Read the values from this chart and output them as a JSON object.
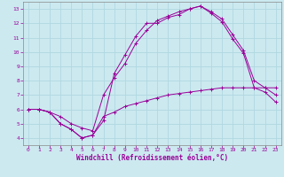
{
  "xlabel": "Windchill (Refroidissement éolien,°C)",
  "background_color": "#cce9f0",
  "grid_color": "#b0d8e0",
  "line_color": "#990099",
  "xlim": [
    -0.5,
    23.5
  ],
  "ylim": [
    3.5,
    13.5
  ],
  "xticks": [
    0,
    1,
    2,
    3,
    4,
    5,
    6,
    7,
    8,
    9,
    10,
    11,
    12,
    13,
    14,
    15,
    16,
    17,
    18,
    19,
    20,
    21,
    22,
    23
  ],
  "yticks": [
    4,
    5,
    6,
    7,
    8,
    9,
    10,
    11,
    12,
    13
  ],
  "series1_x": [
    0,
    1,
    2,
    3,
    4,
    5,
    6,
    7,
    8,
    9,
    10,
    11,
    12,
    13,
    14,
    15,
    16,
    17,
    18,
    19,
    20,
    21,
    22,
    23
  ],
  "series1_y": [
    6.0,
    6.0,
    5.8,
    5.0,
    4.6,
    4.0,
    4.2,
    5.2,
    8.5,
    9.8,
    11.1,
    12.0,
    12.0,
    12.4,
    12.6,
    13.0,
    13.2,
    12.7,
    12.1,
    10.9,
    9.9,
    7.5,
    7.2,
    6.5
  ],
  "series2_x": [
    0,
    1,
    2,
    3,
    4,
    5,
    6,
    7,
    8,
    9,
    10,
    11,
    12,
    13,
    14,
    15,
    16,
    17,
    18,
    19,
    20,
    21,
    22,
    23
  ],
  "series2_y": [
    6.0,
    6.0,
    5.8,
    5.0,
    4.6,
    4.0,
    4.2,
    5.5,
    5.8,
    6.2,
    6.4,
    6.6,
    6.8,
    7.0,
    7.1,
    7.2,
    7.3,
    7.4,
    7.5,
    7.5,
    7.5,
    7.5,
    7.5,
    7.5
  ],
  "series3_x": [
    0,
    1,
    2,
    3,
    4,
    5,
    6,
    7,
    8,
    9,
    10,
    11,
    12,
    13,
    14,
    15,
    16,
    17,
    18,
    19,
    20,
    21,
    22,
    23
  ],
  "series3_y": [
    6.0,
    6.0,
    5.8,
    5.5,
    5.0,
    4.7,
    4.5,
    7.0,
    8.2,
    9.2,
    10.6,
    11.5,
    12.2,
    12.5,
    12.8,
    13.0,
    13.2,
    12.8,
    12.3,
    11.2,
    10.1,
    8.0,
    7.5,
    7.0
  ]
}
